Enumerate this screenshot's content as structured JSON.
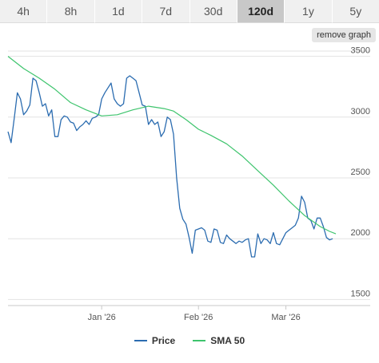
{
  "tabs": [
    {
      "label": "4h",
      "active": false
    },
    {
      "label": "8h",
      "active": false
    },
    {
      "label": "1d",
      "active": false
    },
    {
      "label": "7d",
      "active": false
    },
    {
      "label": "30d",
      "active": false
    },
    {
      "label": "120d",
      "active": true
    },
    {
      "label": "1y",
      "active": false
    },
    {
      "label": "5y",
      "active": false
    }
  ],
  "remove_graph_label": "remove graph",
  "colors": {
    "price": "#2b6cb0",
    "sma": "#3ec46d",
    "grid": "#e3e3e3",
    "axis": "#c8c8c8"
  },
  "chart_data": {
    "type": "line",
    "title": "",
    "xlabel": "",
    "ylabel": "",
    "x_ticks": [
      {
        "label": "Jan '26",
        "x": 30
      },
      {
        "label": "Feb '26",
        "x": 61
      },
      {
        "label": "Mar '26",
        "x": 89
      }
    ],
    "xlim": [
      0,
      116
    ],
    "y_ticks": [
      1500,
      2000,
      2500,
      3000,
      3500
    ],
    "ylim": [
      1450,
      3550
    ],
    "grid": true,
    "legend_position": "bottom-center",
    "series": [
      {
        "name": "Price",
        "color": "#2b6cb0",
        "points": [
          [
            0,
            2880
          ],
          [
            1,
            2790
          ],
          [
            2,
            2990
          ],
          [
            3,
            3200
          ],
          [
            4,
            3150
          ],
          [
            5,
            3020
          ],
          [
            6,
            3050
          ],
          [
            7,
            3100
          ],
          [
            8,
            3320
          ],
          [
            9,
            3300
          ],
          [
            10,
            3200
          ],
          [
            11,
            3090
          ],
          [
            12,
            3110
          ],
          [
            13,
            3010
          ],
          [
            14,
            3060
          ],
          [
            15,
            2840
          ],
          [
            16,
            2840
          ],
          [
            17,
            2980
          ],
          [
            18,
            3010
          ],
          [
            19,
            3000
          ],
          [
            20,
            2960
          ],
          [
            21,
            2950
          ],
          [
            22,
            2890
          ],
          [
            23,
            2920
          ],
          [
            24,
            2940
          ],
          [
            25,
            2970
          ],
          [
            26,
            2940
          ],
          [
            27,
            2990
          ],
          [
            28,
            3000
          ],
          [
            29,
            3020
          ],
          [
            30,
            3150
          ],
          [
            31,
            3200
          ],
          [
            32,
            3240
          ],
          [
            33,
            3280
          ],
          [
            34,
            3150
          ],
          [
            35,
            3110
          ],
          [
            36,
            3090
          ],
          [
            37,
            3110
          ],
          [
            38,
            3320
          ],
          [
            39,
            3340
          ],
          [
            40,
            3320
          ],
          [
            41,
            3300
          ],
          [
            42,
            3200
          ],
          [
            43,
            3100
          ],
          [
            44,
            3090
          ],
          [
            45,
            2940
          ],
          [
            46,
            2980
          ],
          [
            47,
            2940
          ],
          [
            48,
            2960
          ],
          [
            49,
            2840
          ],
          [
            50,
            2880
          ],
          [
            51,
            3000
          ],
          [
            52,
            2980
          ],
          [
            53,
            2860
          ],
          [
            54,
            2500
          ],
          [
            55,
            2250
          ],
          [
            56,
            2160
          ],
          [
            57,
            2120
          ],
          [
            58,
            2010
          ],
          [
            59,
            1880
          ],
          [
            60,
            2070
          ],
          [
            61,
            2080
          ],
          [
            62,
            2090
          ],
          [
            63,
            2070
          ],
          [
            64,
            1980
          ],
          [
            65,
            1970
          ],
          [
            66,
            2080
          ],
          [
            67,
            2070
          ],
          [
            68,
            1970
          ],
          [
            69,
            1960
          ],
          [
            70,
            2030
          ],
          [
            71,
            2000
          ],
          [
            72,
            1980
          ],
          [
            73,
            1960
          ],
          [
            74,
            1980
          ],
          [
            75,
            1970
          ],
          [
            76,
            1990
          ],
          [
            77,
            2000
          ],
          [
            78,
            1850
          ],
          [
            79,
            1850
          ],
          [
            80,
            2040
          ],
          [
            81,
            1960
          ],
          [
            82,
            2000
          ],
          [
            83,
            1990
          ],
          [
            84,
            1960
          ],
          [
            85,
            2050
          ],
          [
            86,
            1960
          ],
          [
            87,
            1950
          ],
          [
            88,
            2000
          ],
          [
            89,
            2050
          ],
          [
            90,
            2070
          ],
          [
            91,
            2090
          ],
          [
            92,
            2110
          ],
          [
            93,
            2170
          ],
          [
            94,
            2350
          ],
          [
            95,
            2300
          ],
          [
            96,
            2170
          ],
          [
            97,
            2150
          ],
          [
            98,
            2080
          ],
          [
            99,
            2170
          ],
          [
            100,
            2170
          ],
          [
            101,
            2100
          ],
          [
            102,
            2010
          ],
          [
            103,
            1990
          ],
          [
            104,
            2000
          ]
        ]
      },
      {
        "name": "SMA 50",
        "color": "#3ec46d",
        "points": [
          [
            0,
            3500
          ],
          [
            5,
            3400
          ],
          [
            10,
            3320
          ],
          [
            15,
            3230
          ],
          [
            20,
            3120
          ],
          [
            25,
            3060
          ],
          [
            30,
            3010
          ],
          [
            35,
            3020
          ],
          [
            40,
            3060
          ],
          [
            45,
            3090
          ],
          [
            50,
            3070
          ],
          [
            53,
            3050
          ],
          [
            57,
            2980
          ],
          [
            61,
            2900
          ],
          [
            65,
            2850
          ],
          [
            70,
            2780
          ],
          [
            75,
            2680
          ],
          [
            80,
            2560
          ],
          [
            85,
            2440
          ],
          [
            90,
            2310
          ],
          [
            95,
            2190
          ],
          [
            100,
            2100
          ],
          [
            103,
            2060
          ],
          [
            105,
            2040
          ]
        ]
      }
    ]
  }
}
